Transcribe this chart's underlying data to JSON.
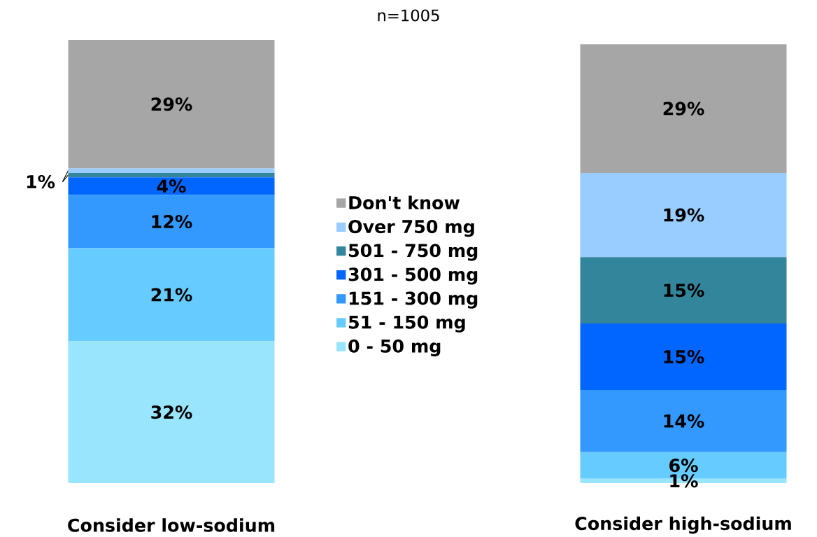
{
  "chart_data": {
    "type": "bar",
    "stacked": true,
    "title": "n=1005",
    "categories": [
      "Consider low-sodium",
      "Consider high-sodium"
    ],
    "legend": "center",
    "series": [
      {
        "name": "0 - 50 mg",
        "color": "#99e5fd",
        "values": [
          32,
          1
        ],
        "value_labels": [
          "32%",
          "1%"
        ]
      },
      {
        "name": "51 - 150 mg",
        "color": "#66ccff",
        "values": [
          21,
          6
        ],
        "value_labels": [
          "21%",
          "6%"
        ]
      },
      {
        "name": "151 - 300 mg",
        "color": "#3399ff",
        "values": [
          12,
          14
        ],
        "value_labels": [
          "12%",
          "14%"
        ]
      },
      {
        "name": "301 - 500 mg",
        "color": "#0066ff",
        "values": [
          4,
          15
        ],
        "value_labels": [
          "4%",
          "15%"
        ]
      },
      {
        "name": "501 - 750 mg",
        "color": "#33859b",
        "values": [
          1,
          15
        ],
        "value_labels": [
          null,
          "15%"
        ]
      },
      {
        "name": "Over 750 mg",
        "color": "#99ccff",
        "values": [
          1,
          19
        ],
        "value_labels": [
          "1%",
          "19%"
        ]
      },
      {
        "name": "Don't know",
        "color": "#a6a6a6",
        "values": [
          29,
          29
        ],
        "value_labels": [
          "29%",
          "29%"
        ]
      }
    ]
  }
}
